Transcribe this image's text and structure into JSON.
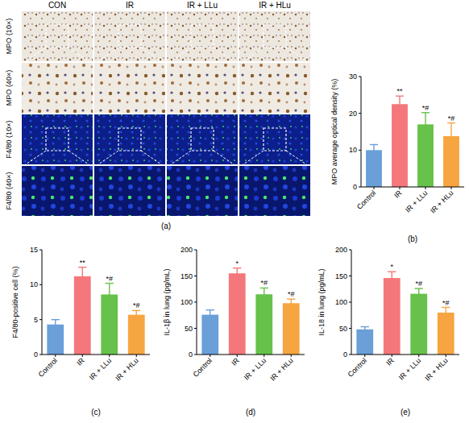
{
  "image_grid": {
    "panel": "(a)",
    "columns": [
      "CON",
      "IR",
      "IR + LLu",
      "IR + HLu"
    ],
    "rows": [
      "MPO (10×)",
      "MPO (40×)",
      "F4/80 (10×)",
      "F4/80 (40×)"
    ]
  },
  "chart_data": [
    {
      "type": "bar",
      "panel": "(b)",
      "y_label": "MPO average optical density (%)",
      "categories": [
        "Control",
        "IR",
        "IR + LLu",
        "IR + HLu"
      ],
      "values": [
        10,
        22.5,
        17,
        13.8
      ],
      "errors": [
        1.5,
        2.2,
        3.2,
        3.6
      ],
      "colors": [
        "#6a9fd8",
        "#f4777b",
        "#66c24a",
        "#f7a540"
      ],
      "ylim": [
        0,
        30
      ],
      "yticks": [
        0,
        10,
        20,
        30
      ],
      "grid": false,
      "annotations": [
        {
          "x": "IR",
          "text": "**"
        },
        {
          "x": "IR + LLu",
          "text": "*#"
        },
        {
          "x": "IR + HLu",
          "text": "*#"
        }
      ]
    },
    {
      "type": "bar",
      "panel": "(c)",
      "y_label": "F4/80-positive cell (%)",
      "categories": [
        "Control",
        "IR",
        "IR + LLu",
        "IR + HLu"
      ],
      "values": [
        4.3,
        11.2,
        8.6,
        5.7
      ],
      "errors": [
        0.7,
        1.3,
        1.6,
        0.6
      ],
      "colors": [
        "#6a9fd8",
        "#f4777b",
        "#66c24a",
        "#f7a540"
      ],
      "ylim": [
        0,
        15
      ],
      "yticks": [
        0,
        5,
        10,
        15
      ],
      "grid": false,
      "annotations": [
        {
          "x": "IR",
          "text": "**"
        },
        {
          "x": "IR + LLu",
          "text": "*#"
        },
        {
          "x": "IR + HLu",
          "text": "*#"
        }
      ]
    },
    {
      "type": "bar",
      "panel": "(d)",
      "y_label": "IL-1β in lung (pg/mL)",
      "categories": [
        "Control",
        "IR",
        "IR + LLu",
        "IR + HLu"
      ],
      "values": [
        76,
        155,
        115,
        98
      ],
      "errors": [
        9,
        10,
        12,
        8
      ],
      "colors": [
        "#6a9fd8",
        "#f4777b",
        "#66c24a",
        "#f7a540"
      ],
      "ylim": [
        0,
        200
      ],
      "yticks": [
        0,
        50,
        100,
        150,
        200
      ],
      "grid": false,
      "annotations": [
        {
          "x": "IR",
          "text": "*"
        },
        {
          "x": "IR + LLu",
          "text": "*#"
        },
        {
          "x": "IR + HLu",
          "text": "*#"
        }
      ]
    },
    {
      "type": "bar",
      "panel": "(e)",
      "y_label": "IL-18 in lung (pg/mL)",
      "categories": [
        "Control",
        "IR",
        "IR + LLu",
        "IR + HLu"
      ],
      "values": [
        48,
        146,
        116,
        80
      ],
      "errors": [
        5,
        12,
        10,
        10
      ],
      "colors": [
        "#6a9fd8",
        "#f4777b",
        "#66c24a",
        "#f7a540"
      ],
      "ylim": [
        0,
        200
      ],
      "yticks": [
        0,
        50,
        100,
        150,
        200
      ],
      "grid": false,
      "annotations": [
        {
          "x": "IR",
          "text": "*"
        },
        {
          "x": "IR + LLu",
          "text": "*#"
        },
        {
          "x": "IR + HLu",
          "text": "*#"
        }
      ]
    }
  ]
}
